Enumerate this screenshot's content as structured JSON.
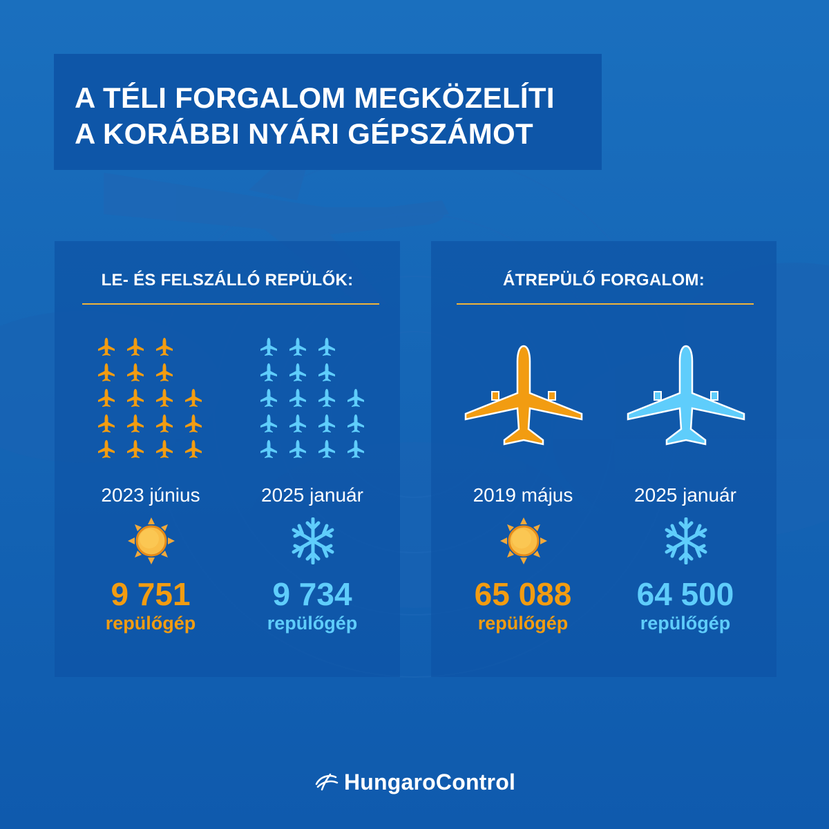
{
  "title": {
    "line1": "A TÉLI FORGALOM MEGKÖZELÍTI",
    "line2": "A KORÁBBI NYÁRI GÉPSZÁMOT"
  },
  "left_panel": {
    "heading": "LE- ÉS FELSZÁLLÓ REPÜLŐK:",
    "columns": [
      {
        "date": "2023 június",
        "count": "9 751",
        "unit": "repülőgép",
        "season_icon": "sun-icon",
        "color": "#f29c11"
      },
      {
        "date": "2025 január",
        "count": "9 734",
        "unit": "repülőgép",
        "season_icon": "snowflake-icon",
        "color": "#5fcdfb"
      }
    ]
  },
  "right_panel": {
    "heading": "ÁTREPÜLŐ FORGALOM:",
    "columns": [
      {
        "date": "2019 május",
        "count": "65 088",
        "unit": "repülőgép",
        "season_icon": "sun-icon",
        "color": "#f29c11"
      },
      {
        "date": "2025 január",
        "count": "64 500",
        "unit": "repülőgép",
        "season_icon": "snowflake-icon",
        "color": "#5fcdfb"
      }
    ]
  },
  "footer": {
    "brand": "HungaroControl",
    "logo_icon": "hungarocontrol-logo-icon"
  },
  "colors": {
    "background": "#1566b6",
    "panel": "#0e54a6",
    "accent_orange": "#f29c11",
    "accent_lightblue": "#5fcdfb",
    "rule": "#f0b43a"
  }
}
